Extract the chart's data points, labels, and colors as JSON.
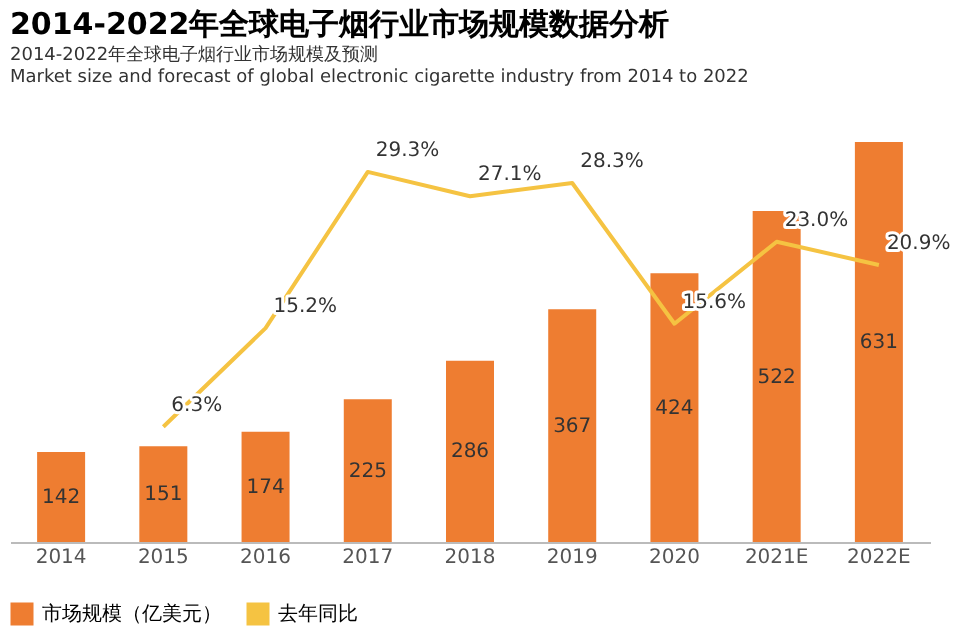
{
  "chart_data": {
    "type": "bar",
    "title": "2014-2022年全球电子烟行业市场规模数据分析",
    "subtitle": [
      "2014-2022年全球电子烟行业市场规模及预测",
      "Market size and forecast of global electronic cigarette industry from 2014 to 2022"
    ],
    "categories": [
      "2014",
      "2015",
      "2016",
      "2017",
      "2018",
      "2019",
      "2020",
      "2021E",
      "2022E"
    ],
    "data_labels": true,
    "tick_labels": "x",
    "legend": "bottom",
    "grid": false,
    "series": [
      {
        "name": "市场规模（亿美元）",
        "color": "#ee7d31",
        "values": [
          142,
          151,
          174,
          225,
          286,
          367,
          424,
          522,
          631
        ]
      },
      {
        "name": "去年同比",
        "type": "line",
        "axis": "y2",
        "color": "#f5c342",
        "values": [
          null,
          6.3,
          15.2,
          29.3,
          27.1,
          28.3,
          15.6,
          23.0,
          20.9
        ],
        "value_labels": [
          null,
          "6.3%",
          "15.2%",
          "29.3%",
          "27.1%",
          "28.3%",
          "15.6%",
          "23.0%",
          "20.9%"
        ]
      }
    ]
  }
}
